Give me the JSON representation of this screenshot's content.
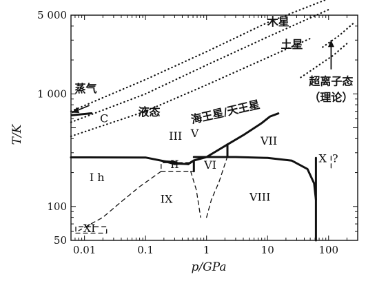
{
  "chart_data": {
    "type": "phase-diagram",
    "xlabel": "p/GPa",
    "ylabel": "T/K",
    "x_scale": "log",
    "y_scale": "log",
    "xlim": [
      0.006,
      300
    ],
    "ylim": [
      50,
      5000
    ],
    "x_ticks": [
      {
        "value": 0.01,
        "label": "0.01"
      },
      {
        "value": 0.1,
        "label": "0.1"
      },
      {
        "value": 1,
        "label": "1"
      },
      {
        "value": 10,
        "label": "10"
      },
      {
        "value": 100,
        "label": "100"
      }
    ],
    "y_ticks": [
      {
        "value": 50,
        "label": "50"
      },
      {
        "value": 100,
        "label": "100"
      },
      {
        "value": 1000,
        "label": "1 000"
      },
      {
        "value": 5000,
        "label": "5 000"
      }
    ],
    "grid": false,
    "boundaries": [
      {
        "id": "melting-line-low",
        "style": "solid",
        "points": [
          [
            0.006,
            273
          ],
          [
            0.1,
            272
          ],
          [
            0.21,
            251
          ]
        ]
      },
      {
        "id": "iii-ii-boundary",
        "style": "solid",
        "points": [
          [
            0.21,
            251
          ],
          [
            0.3,
            248
          ],
          [
            0.35,
            240
          ],
          [
            0.5,
            238
          ]
        ]
      },
      {
        "id": "ii-lower-boundary",
        "style": "solid",
        "points": [
          [
            0.21,
            251
          ],
          [
            0.3,
            238
          ],
          [
            0.35,
            240
          ]
        ]
      },
      {
        "id": "melting-line-mid",
        "style": "solid",
        "points": [
          [
            0.5,
            238
          ],
          [
            0.62,
            256
          ],
          [
            1.0,
            275
          ],
          [
            2.2,
            355
          ]
        ]
      },
      {
        "id": "melting-line-high",
        "style": "solid",
        "points": [
          [
            2.2,
            355
          ],
          [
            4,
            430
          ],
          [
            8,
            550
          ],
          [
            11,
            630
          ],
          [
            15,
            670
          ]
        ]
      },
      {
        "id": "ih-ii-boundary",
        "style": "solid",
        "points": [
          [
            0.21,
            251
          ],
          [
            0.35,
            240
          ]
        ]
      },
      {
        "id": "ii-v-boundary",
        "style": "solid",
        "points": [
          [
            0.5,
            238
          ],
          [
            0.62,
            256
          ],
          [
            0.62,
            205
          ]
        ]
      },
      {
        "id": "vi-vii-boundary",
        "style": "solid",
        "points": [
          [
            2.2,
            355
          ],
          [
            2.2,
            278
          ]
        ]
      },
      {
        "id": "vii-viii-boundary",
        "style": "solid",
        "points": [
          [
            0.62,
            275
          ],
          [
            3,
            275
          ],
          [
            10,
            270
          ],
          [
            25,
            255
          ],
          [
            45,
            215
          ],
          [
            58,
            160
          ],
          [
            62,
            115
          ]
        ]
      },
      {
        "id": "ii-box",
        "style": "dashed",
        "points": [
          [
            0.18,
            205
          ],
          [
            0.62,
            205
          ],
          [
            0.62,
            245
          ],
          [
            0.18,
            245
          ],
          [
            0.18,
            205
          ]
        ]
      },
      {
        "id": "ih-ix-dashed",
        "style": "dashed",
        "points": [
          [
            0.18,
            205
          ],
          [
            0.08,
            150
          ],
          [
            0.04,
            110
          ],
          [
            0.02,
            80
          ],
          [
            0.008,
            61
          ]
        ]
      },
      {
        "id": "vi-ix-dashed",
        "style": "dashed",
        "points": [
          [
            0.55,
            205
          ],
          [
            0.68,
            140
          ],
          [
            0.8,
            80
          ]
        ]
      },
      {
        "id": "vi-viii-dashed",
        "style": "dashed",
        "points": [
          [
            1.0,
            80
          ],
          [
            1.2,
            115
          ],
          [
            1.6,
            165
          ],
          [
            2.2,
            278
          ]
        ]
      },
      {
        "id": "xi-box",
        "style": "dashed",
        "points": [
          [
            0.0072,
            58
          ],
          [
            0.023,
            58
          ],
          [
            0.023,
            66
          ],
          [
            0.0072,
            66
          ],
          [
            0.0072,
            58
          ]
        ]
      },
      {
        "id": "x-viii-line",
        "style": "solid",
        "points": [
          [
            62,
            50
          ],
          [
            62,
            270
          ]
        ]
      },
      {
        "id": "x-vii-dashed",
        "style": "dashed",
        "points": [
          [
            110,
            220
          ],
          [
            110,
            290
          ]
        ]
      },
      {
        "id": "c-line",
        "style": "solid",
        "points": [
          [
            0.0062,
            646
          ],
          [
            0.013,
            672
          ]
        ]
      }
    ],
    "planet_isentropes": [
      {
        "label": "木星",
        "style": "dotted",
        "points": [
          [
            0.006,
            700
          ],
          [
            0.1,
            1340
          ],
          [
            1,
            2370
          ],
          [
            10,
            4300
          ],
          [
            100,
            7000
          ]
        ]
      },
      {
        "label": "土星",
        "style": "dotted",
        "points": [
          [
            0.006,
            560
          ],
          [
            0.1,
            1000
          ],
          [
            1,
            1800
          ],
          [
            10,
            3200
          ],
          [
            100,
            5600
          ]
        ]
      },
      {
        "label": "海王星/天王星",
        "style": "dotted",
        "points": [
          [
            0.006,
            420
          ],
          [
            0.1,
            700
          ],
          [
            1,
            1200
          ],
          [
            10,
            2100
          ],
          [
            50,
            3100
          ]
        ]
      },
      {
        "label": "",
        "style": "dotted",
        "points": [
          [
            35,
            1400
          ],
          [
            55,
            1650
          ],
          [
            80,
            1900
          ],
          [
            120,
            2200
          ],
          [
            200,
            2800
          ]
        ]
      },
      {
        "label": "",
        "style": "dotted",
        "points": [
          [
            80,
            2600
          ],
          [
            150,
            3300
          ],
          [
            250,
            4200
          ]
        ]
      }
    ],
    "annotations": [
      {
        "id": "steam-arrow",
        "type": "arrow",
        "from": [
          0.012,
          790
        ],
        "to": [
          0.0062,
          680
        ]
      },
      {
        "id": "superionic-arrow",
        "type": "arrow",
        "from": [
          110,
          1650
        ],
        "to": [
          110,
          3000
        ]
      }
    ],
    "region_labels": [
      {
        "id": "steam",
        "text": "蒸气",
        "x": 0.0105,
        "y": 1030,
        "bold": true
      },
      {
        "id": "c",
        "text": "C",
        "x": 0.021,
        "y": 560,
        "bold": false
      },
      {
        "id": "liquid",
        "text": "液态",
        "x": 0.115,
        "y": 640,
        "bold": true
      },
      {
        "id": "jupiter",
        "text": "木星",
        "x": 15,
        "y": 4050,
        "bold": true
      },
      {
        "id": "saturn",
        "text": "土星",
        "x": 25,
        "y": 2550,
        "bold": true
      },
      {
        "id": "neptune",
        "text": "海王星/天王星",
        "x": 2.1,
        "y": 640,
        "bold": true
      },
      {
        "id": "superionic",
        "text": "超离子态",
        "x": 110,
        "y": 1200,
        "bold": true
      },
      {
        "id": "theory",
        "text": "（理论）",
        "x": 110,
        "y": 860,
        "bold": true
      },
      {
        "id": "iii",
        "text": "III",
        "x": 0.31,
        "y": 392,
        "bold": false
      },
      {
        "id": "v",
        "text": "V",
        "x": 0.64,
        "y": 412,
        "bold": false
      },
      {
        "id": "vii",
        "text": "VII",
        "x": 10.5,
        "y": 354,
        "bold": false
      },
      {
        "id": "x",
        "text": "X",
        "x": 80,
        "y": 248,
        "bold": false
      },
      {
        "id": "q",
        "text": "?",
        "x": 128,
        "y": 248,
        "bold": false
      },
      {
        "id": "ii",
        "text": "II",
        "x": 0.3,
        "y": 220,
        "bold": false
      },
      {
        "id": "vi",
        "text": "VI",
        "x": 1.15,
        "y": 216,
        "bold": false
      },
      {
        "id": "ih",
        "text": "I h",
        "x": 0.016,
        "y": 168,
        "bold": false
      },
      {
        "id": "ix",
        "text": "IX",
        "x": 0.22,
        "y": 108,
        "bold": false
      },
      {
        "id": "viii",
        "text": "VIII",
        "x": 7.5,
        "y": 112,
        "bold": false
      },
      {
        "id": "xi",
        "text": "XI",
        "x": 0.012,
        "y": 59,
        "bold": false
      }
    ]
  }
}
